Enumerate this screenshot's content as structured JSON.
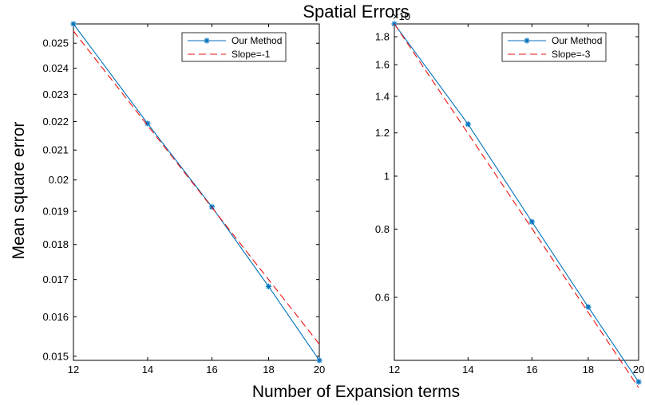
{
  "figure": {
    "title": "Spatial Errors",
    "xlabel": "Number of Expansion terms",
    "ylabel": "Mean square error"
  },
  "chart_data": [
    {
      "type": "line",
      "title": "Spatial Errors",
      "xlabel": "Number of Expansion terms",
      "ylabel": "Mean square error",
      "xscale": "log",
      "yscale": "log",
      "xlim": [
        12,
        20
      ],
      "ylim": [
        0.0149,
        0.0258
      ],
      "xticks": [
        12,
        14,
        16,
        18,
        20
      ],
      "xtick_labels": [
        "12",
        "14",
        "16",
        "18",
        "20"
      ],
      "yticks": [
        0.015,
        0.016,
        0.017,
        0.018,
        0.019,
        0.02,
        0.021,
        0.022,
        0.023,
        0.024,
        0.025
      ],
      "ytick_labels": [
        "0.015",
        "0.016",
        "0.017",
        "0.018",
        "0.019",
        "0.02",
        "0.021",
        "0.022",
        "0.023",
        "0.024",
        "0.025"
      ],
      "exponent_label": "",
      "legend_position": "top-right",
      "grid": false,
      "x": [
        12,
        14,
        16,
        18,
        20
      ],
      "series": [
        {
          "name": "Our Method",
          "values": [
            0.0258,
            0.02193,
            0.01914,
            0.01681,
            0.0149
          ],
          "color": "#0072BD",
          "style": "solid",
          "marker": "asterisk"
        },
        {
          "name": "Slope=-1",
          "values": [
            0.0255,
            0.02186,
            0.01912,
            0.017,
            0.0153
          ],
          "color": "#EE1111",
          "style": "dashed",
          "marker": "none"
        }
      ]
    },
    {
      "type": "line",
      "title": "",
      "xlabel": "",
      "ylabel": "",
      "xscale": "log",
      "yscale": "log",
      "xlim": [
        12,
        20
      ],
      "ylim": [
        0.00046,
        0.0019
      ],
      "xticks": [
        12,
        14,
        16,
        18,
        20
      ],
      "xtick_labels": [
        "12",
        "14",
        "16",
        "18",
        "20"
      ],
      "yticks": [
        0.0006,
        0.0008,
        0.001,
        0.0012,
        0.0014,
        0.0016,
        0.0018
      ],
      "ytick_labels": [
        "0.6",
        "0.8",
        "1",
        "1.2",
        "1.4",
        "1.6",
        "1.8"
      ],
      "exponent_label": "×10",
      "legend_position": "top-right",
      "grid": false,
      "x": [
        12,
        14,
        16,
        18,
        20
      ],
      "series": [
        {
          "name": "Our Method",
          "values": [
            0.0019,
            0.001245,
            0.000825,
            0.000576,
            0.00042
          ],
          "color": "#0072BD",
          "style": "solid",
          "marker": "asterisk"
        },
        {
          "name": "Slope=-3",
          "values": [
            0.0019,
            0.001197,
            0.000802,
            0.000563,
            0.00041
          ],
          "color": "#EE1111",
          "style": "dashed",
          "marker": "none"
        }
      ]
    }
  ]
}
